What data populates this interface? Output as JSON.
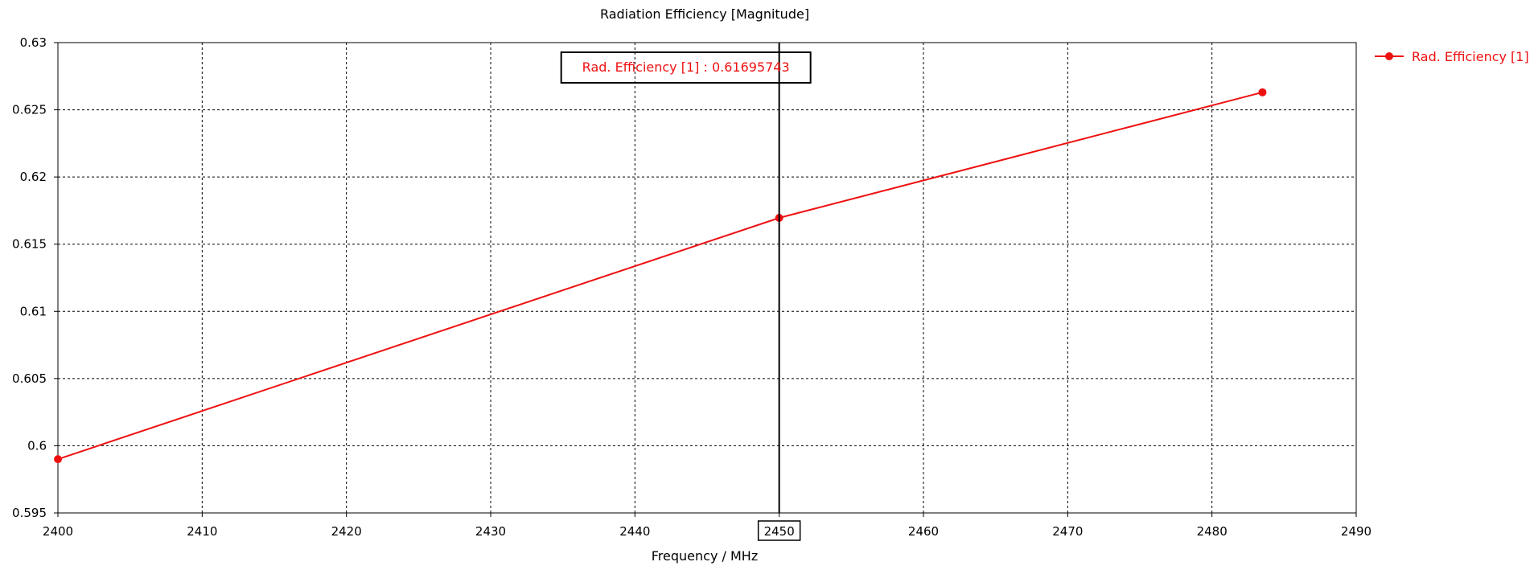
{
  "chart_data": {
    "type": "line",
    "title": "Radiation Efficiency [Magnitude]",
    "xlabel": "Frequency / MHz",
    "ylabel": "",
    "xlim": [
      2400,
      2490
    ],
    "ylim": [
      0.595,
      0.63
    ],
    "x_ticks": [
      2400,
      2410,
      2420,
      2430,
      2440,
      2450,
      2460,
      2470,
      2480,
      2490
    ],
    "y_ticks": [
      0.595,
      0.6,
      0.605,
      0.61,
      0.615,
      0.62,
      0.625,
      0.63
    ],
    "x_tick_labels": [
      "2400",
      "2410",
      "2420",
      "2430",
      "2440",
      "2450",
      "2460",
      "2470",
      "2480",
      "2490"
    ],
    "y_tick_labels": [
      "0.595",
      "0.6",
      "0.605",
      "0.61",
      "0.615",
      "0.62",
      "0.625",
      "0.63"
    ],
    "grid": true,
    "legend_position": "top-right outside",
    "series": [
      {
        "name": "Rad. Efficiency [1]",
        "color": "#ee1111",
        "x": [
          2400,
          2450,
          2483.5
        ],
        "y": [
          0.599,
          0.61695743,
          0.6263
        ],
        "markers_x": [
          2400,
          2450,
          2483.5
        ]
      }
    ],
    "marker": {
      "x": 2450,
      "x_label": "2450",
      "annotation": "Rad. Efficiency [1] : 0.61695743",
      "color": "#000000"
    }
  }
}
